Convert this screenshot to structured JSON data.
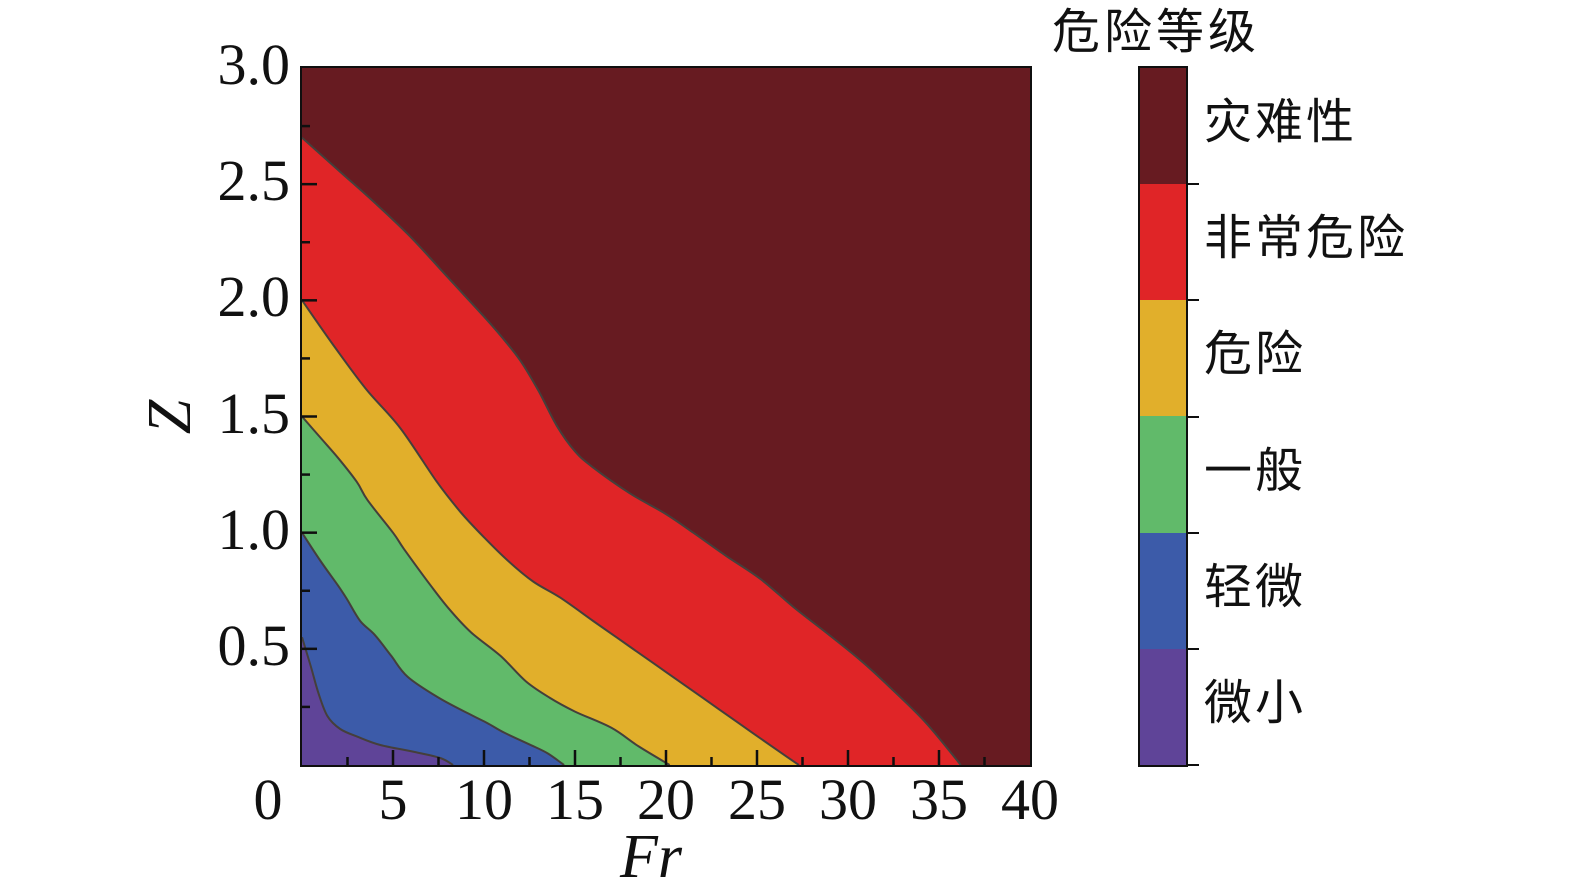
{
  "page": {
    "background": "#ffffff"
  },
  "chart_data": {
    "type": "filled-contour",
    "xlabel": "Fr",
    "ylabel": "Z",
    "xlim": [
      0,
      40
    ],
    "ylim": [
      0,
      3.0
    ],
    "grid": false,
    "x_tick_labels": [
      {
        "label": "0",
        "value": 0,
        "origin_offset": true
      },
      {
        "label": "5",
        "value": 5
      },
      {
        "label": "10",
        "value": 10
      },
      {
        "label": "15",
        "value": 15
      },
      {
        "label": "20",
        "value": 20
      },
      {
        "label": "25",
        "value": 25
      },
      {
        "label": "30",
        "value": 30
      },
      {
        "label": "35",
        "value": 35
      },
      {
        "label": "40",
        "value": 40
      }
    ],
    "y_tick_labels": [
      {
        "label": "3.0",
        "value": 3.0
      },
      {
        "label": "2.5",
        "value": 2.5
      },
      {
        "label": "2.0",
        "value": 2.0
      },
      {
        "label": "1.5",
        "value": 1.5
      },
      {
        "label": "1.0",
        "value": 1.0
      },
      {
        "label": "0.5",
        "value": 0.5
      }
    ],
    "x_major_ticks": [
      5,
      10,
      15,
      20,
      25,
      30,
      35
    ],
    "x_minor_ticks": [
      2.5,
      7.5,
      12.5,
      17.5,
      22.5,
      27.5,
      32.5,
      37.5
    ],
    "y_major_ticks": [
      0.5,
      1.0,
      1.5,
      2.0,
      2.5
    ],
    "y_minor_ticks": [
      0.25,
      0.75,
      1.25,
      1.75,
      2.25,
      2.75
    ],
    "background_level": {
      "name": "灾难性",
      "color": "#671B21"
    },
    "contour_line_color": "#453f3b",
    "bands": [
      {
        "name": "非常危险",
        "color": "#E02527",
        "upper_boundary": [
          [
            0,
            2.7
          ],
          [
            2,
            2.56
          ],
          [
            4,
            2.42
          ],
          [
            6,
            2.27
          ],
          [
            8,
            2.1
          ],
          [
            10,
            1.93
          ],
          [
            11,
            1.84
          ],
          [
            12,
            1.74
          ],
          [
            13,
            1.61
          ],
          [
            14,
            1.46
          ],
          [
            15,
            1.35
          ],
          [
            16,
            1.28
          ],
          [
            18,
            1.17
          ],
          [
            20,
            1.08
          ],
          [
            21.5,
            1.0
          ],
          [
            23.3,
            0.9
          ],
          [
            25.2,
            0.8
          ],
          [
            27,
            0.68
          ],
          [
            28.8,
            0.57
          ],
          [
            30.7,
            0.45
          ],
          [
            32.5,
            0.32
          ],
          [
            34.3,
            0.18
          ],
          [
            36.2,
            0
          ]
        ]
      },
      {
        "name": "危险",
        "color": "#E1AF2B",
        "upper_boundary": [
          [
            0,
            2.0
          ],
          [
            1.7,
            1.81
          ],
          [
            3.5,
            1.62
          ],
          [
            5.4,
            1.45
          ],
          [
            7.4,
            1.22
          ],
          [
            8.7,
            1.09
          ],
          [
            10,
            0.98
          ],
          [
            11.3,
            0.88
          ],
          [
            12.7,
            0.79
          ],
          [
            14.2,
            0.72
          ],
          [
            16,
            0.62
          ],
          [
            18,
            0.51
          ],
          [
            20,
            0.4
          ],
          [
            22,
            0.29
          ],
          [
            24,
            0.18
          ],
          [
            26,
            0.07
          ],
          [
            27.3,
            0
          ]
        ]
      },
      {
        "name": "一般",
        "color": "#61BA6A",
        "upper_boundary": [
          [
            0,
            1.5
          ],
          [
            1,
            1.41
          ],
          [
            2,
            1.32
          ],
          [
            3,
            1.22
          ],
          [
            3.6,
            1.14
          ],
          [
            5,
            1.0
          ],
          [
            5.6,
            0.93
          ],
          [
            7,
            0.78
          ],
          [
            8.1,
            0.67
          ],
          [
            9.3,
            0.57
          ],
          [
            10.9,
            0.47
          ],
          [
            12.3,
            0.36
          ],
          [
            13.6,
            0.29
          ],
          [
            15,
            0.23
          ],
          [
            17,
            0.16
          ],
          [
            18.5,
            0.08
          ],
          [
            20.2,
            0
          ]
        ]
      },
      {
        "name": "轻微",
        "color": "#3C5BA9",
        "upper_boundary": [
          [
            0,
            1.0
          ],
          [
            1,
            0.88
          ],
          [
            2,
            0.77
          ],
          [
            2.5,
            0.71
          ],
          [
            3.2,
            0.62
          ],
          [
            4,
            0.56
          ],
          [
            4.9,
            0.47
          ],
          [
            5.8,
            0.38
          ],
          [
            7.5,
            0.29
          ],
          [
            9.3,
            0.215
          ],
          [
            10.2,
            0.18
          ],
          [
            11.1,
            0.14
          ],
          [
            12.6,
            0.085
          ],
          [
            13.5,
            0.05
          ],
          [
            14.4,
            0
          ]
        ]
      },
      {
        "name": "微小",
        "color": "#5F4498",
        "upper_boundary": [
          [
            0,
            0.55
          ],
          [
            0.5,
            0.42
          ],
          [
            0.9,
            0.31
          ],
          [
            1.4,
            0.21
          ],
          [
            2.1,
            0.155
          ],
          [
            3.1,
            0.12
          ],
          [
            4.3,
            0.086
          ],
          [
            6.2,
            0.056
          ],
          [
            7.6,
            0.03
          ],
          [
            8.3,
            0
          ]
        ]
      }
    ]
  },
  "legend": {
    "title": "危险等级",
    "entries": [
      {
        "label": "灾难性",
        "color": "#671B21"
      },
      {
        "label": "非常危险",
        "color": "#E02527"
      },
      {
        "label": "危险",
        "color": "#E1AF2B"
      },
      {
        "label": "一般",
        "color": "#61BA6A"
      },
      {
        "label": "轻微",
        "color": "#3C5BA9"
      },
      {
        "label": "微小",
        "color": "#5F4498"
      }
    ]
  }
}
